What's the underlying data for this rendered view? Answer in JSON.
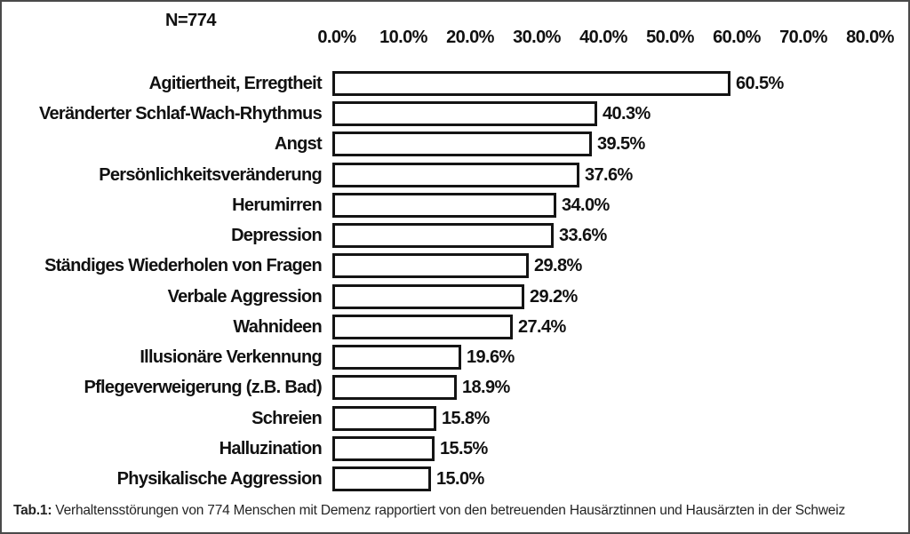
{
  "chart_data": {
    "type": "bar",
    "orientation": "horizontal",
    "title": "",
    "n_label": "N=774",
    "sample_size": 774,
    "xlim": [
      0,
      80
    ],
    "x_tick_labels": [
      "0.0%",
      "10.0%",
      "20.0%",
      "30.0%",
      "40.0%",
      "50.0%",
      "60.0%",
      "70.0%",
      "80.0%"
    ],
    "categories": [
      "Agitiertheit, Erregtheit",
      "Veränderter Schlaf-Wach-Rhythmus",
      "Angst",
      "Persönlichkeitsveränderung",
      "Herumirren",
      "Depression",
      "Ständiges Wiederholen von Fragen",
      "Verbale Aggression",
      "Wahnideen",
      "Illusionäre Verkennung",
      "Pflegeverweigerung (z.B. Bad)",
      "Schreien",
      "Halluzination",
      "Physikalische Aggression"
    ],
    "values": [
      60.5,
      40.3,
      39.5,
      37.6,
      34.0,
      33.6,
      29.8,
      29.2,
      27.4,
      19.6,
      18.9,
      15.8,
      15.5,
      15.0
    ],
    "value_labels": [
      "60.5%",
      "40.3%",
      "39.5%",
      "37.6%",
      "34.0%",
      "33.6%",
      "29.8%",
      "29.2%",
      "27.4%",
      "19.6%",
      "18.9%",
      "15.8%",
      "15.5%",
      "15.0%"
    ],
    "grid": false,
    "legend": false,
    "bar_fill": "#ffffff",
    "bar_border": "#141414"
  },
  "caption": {
    "prefix": "Tab.1:",
    "text": "Verhaltensstörungen von 774 Menschen mit Demenz rapportiert von den betreuenden Hausärztinnen und Hausärzten in der Schweiz"
  },
  "colors": {
    "text": "#111111",
    "background": "#ffffff",
    "frame_border": "#4a4a4a"
  }
}
